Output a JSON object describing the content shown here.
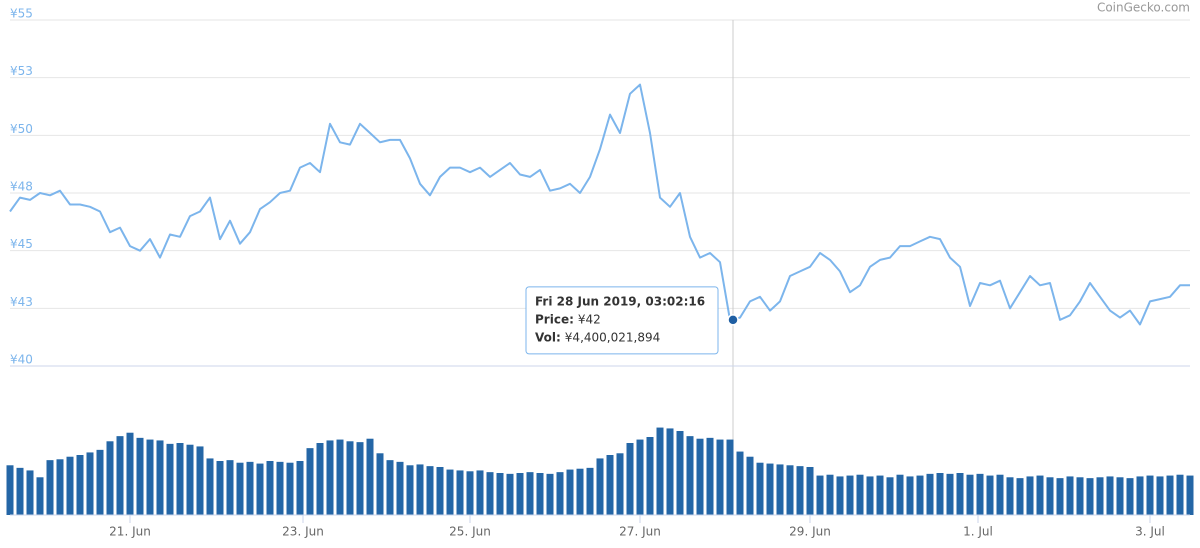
{
  "chart_data": [
    {
      "type": "line",
      "credit": "CoinGecko.com",
      "xlim": [
        0,
        118
      ],
      "ylim": [
        40,
        55
      ],
      "yticks": [
        {
          "value": 40,
          "label": "¥40"
        },
        {
          "value": 42.5,
          "label": "¥43"
        },
        {
          "value": 45,
          "label": "¥45"
        },
        {
          "value": 47.5,
          "label": "¥48"
        },
        {
          "value": 50,
          "label": "¥50"
        },
        {
          "value": 52.5,
          "label": "¥53"
        },
        {
          "value": 55,
          "label": "¥55"
        }
      ],
      "grid": true,
      "series": [
        {
          "color": "#7cb5ec",
          "values": [
            46.7,
            47.3,
            47.2,
            47.5,
            47.4,
            47.6,
            47.0,
            47.0,
            46.9,
            46.7,
            45.8,
            46.0,
            45.2,
            45.0,
            45.5,
            44.7,
            45.7,
            45.6,
            46.5,
            46.7,
            47.3,
            45.5,
            46.3,
            45.3,
            45.8,
            46.8,
            47.1,
            47.5,
            47.6,
            48.6,
            48.8,
            48.4,
            50.5,
            49.7,
            49.6,
            50.5,
            50.1,
            49.7,
            49.8,
            49.8,
            49.0,
            47.9,
            47.4,
            48.2,
            48.6,
            48.6,
            48.4,
            48.6,
            48.2,
            48.5,
            48.8,
            48.3,
            48.2,
            48.5,
            47.6,
            47.7,
            47.9,
            47.5,
            48.2,
            49.4,
            50.9,
            50.1,
            51.8,
            52.2,
            50.1,
            47.3,
            46.9,
            47.5,
            45.6,
            44.7,
            44.9,
            44.5,
            42.0,
            42.1,
            42.8,
            43.0,
            42.4,
            42.8,
            43.9,
            44.1,
            44.3,
            44.9,
            44.6,
            44.1,
            43.2,
            43.5,
            44.3,
            44.6,
            44.7,
            45.2,
            45.2,
            45.4,
            45.6,
            45.5,
            44.7,
            44.3,
            42.6,
            43.6,
            43.5,
            43.7,
            42.5,
            43.2,
            43.9,
            43.5,
            43.6,
            42.0,
            42.2,
            42.8,
            43.6,
            43.0,
            42.4,
            42.1,
            42.4,
            41.8,
            42.8,
            42.9,
            43.0,
            43.5,
            43.5
          ]
        }
      ],
      "hover": {
        "x": 72.3,
        "price": 42,
        "date": "Fri 28 Jun 2019, 03:02:16",
        "price_caption": "Price:",
        "price_label": "¥42",
        "vol_caption": "Vol:",
        "vol_label": "¥4,400,021,894"
      }
    },
    {
      "type": "bar",
      "xlim": [
        0,
        118
      ],
      "ylim": [
        0,
        7000000000
      ],
      "color": "#2466a6",
      "xticks": [
        {
          "value": 12,
          "label": "21. Jun"
        },
        {
          "value": 29.3,
          "label": "23. Jun"
        },
        {
          "value": 46,
          "label": "25. Jun"
        },
        {
          "value": 63,
          "label": "27. Jun"
        },
        {
          "value": 80,
          "label": "29. Jun"
        },
        {
          "value": 96.8,
          "label": "1. Jul"
        },
        {
          "value": 114,
          "label": "3. Jul"
        }
      ],
      "values": [
        2900000000,
        2750000000,
        2600000000,
        2200000000,
        3200000000,
        3250000000,
        3400000000,
        3500000000,
        3650000000,
        3800000000,
        4300000000,
        4600000000,
        4800000000,
        4500000000,
        4400000000,
        4350000000,
        4150000000,
        4200000000,
        4100000000,
        4000000000,
        3300000000,
        3150000000,
        3200000000,
        3050000000,
        3100000000,
        3000000000,
        3150000000,
        3100000000,
        3050000000,
        3150000000,
        3900000000,
        4200000000,
        4350000000,
        4400000000,
        4300000000,
        4250000000,
        4450000000,
        3600000000,
        3200000000,
        3100000000,
        2900000000,
        2950000000,
        2850000000,
        2800000000,
        2650000000,
        2600000000,
        2550000000,
        2600000000,
        2500000000,
        2450000000,
        2400000000,
        2450000000,
        2500000000,
        2450000000,
        2400000000,
        2500000000,
        2650000000,
        2700000000,
        2750000000,
        3300000000,
        3500000000,
        3600000000,
        4200000000,
        4400000000,
        4550000000,
        5100000000,
        5050000000,
        4900000000,
        4600000000,
        4450000000,
        4500000000,
        4400000000,
        4400000000,
        3700000000,
        3400000000,
        3050000000,
        3000000000,
        2950000000,
        2900000000,
        2850000000,
        2800000000,
        2300000000,
        2350000000,
        2250000000,
        2300000000,
        2350000000,
        2250000000,
        2300000000,
        2200000000,
        2350000000,
        2250000000,
        2300000000,
        2400000000,
        2450000000,
        2400000000,
        2450000000,
        2350000000,
        2400000000,
        2300000000,
        2350000000,
        2200000000,
        2150000000,
        2250000000,
        2300000000,
        2200000000,
        2150000000,
        2250000000,
        2200000000,
        2150000000,
        2200000000,
        2250000000,
        2200000000,
        2150000000,
        2250000000,
        2300000000,
        2250000000,
        2300000000,
        2350000000,
        2300000000
      ]
    }
  ]
}
